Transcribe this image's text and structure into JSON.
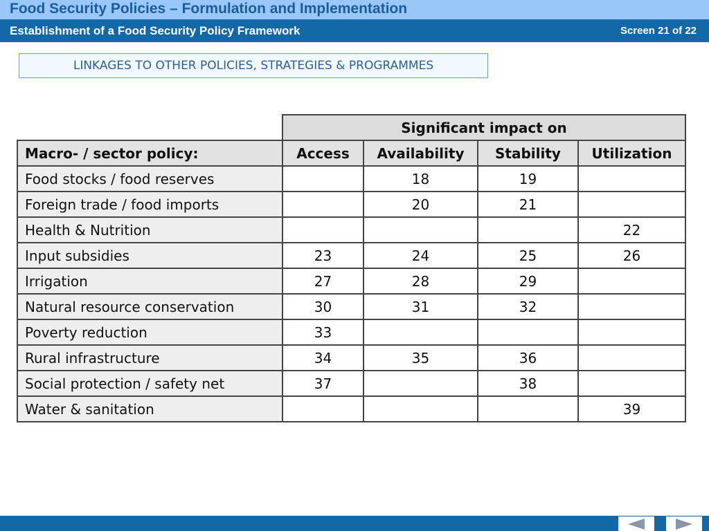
{
  "header": {
    "course_title": "Food Security Policies – Formulation and Implementation",
    "module_title": "Establishment of a Food Security Policy Framework",
    "screen_counter": "Screen 21 of 22"
  },
  "section_title": "LINKAGES TO OTHER POLICIES, STRATEGIES & PROGRAMMES",
  "table": {
    "group_header": "Significant impact on",
    "row_header": "Macro- / sector policy:",
    "columns": [
      "Access",
      "Availability",
      "Stability",
      "Utilization"
    ],
    "rows": [
      {
        "policy": "Food stocks / food reserves",
        "cells": [
          "",
          "18",
          "19",
          ""
        ]
      },
      {
        "policy": "Foreign trade / food imports",
        "cells": [
          "",
          "20",
          "21",
          ""
        ]
      },
      {
        "policy": "Health & Nutrition",
        "cells": [
          "",
          "",
          "",
          "22"
        ]
      },
      {
        "policy": "Input subsidies",
        "cells": [
          "23",
          "24",
          "25",
          "26"
        ]
      },
      {
        "policy": "Irrigation",
        "cells": [
          "27",
          "28",
          "29",
          ""
        ]
      },
      {
        "policy": "Natural resource conservation",
        "cells": [
          "30",
          "31",
          "32",
          ""
        ]
      },
      {
        "policy": "Poverty reduction",
        "cells": [
          "33",
          "",
          "",
          ""
        ]
      },
      {
        "policy": "Rural infrastructure",
        "cells": [
          "34",
          "35",
          "36",
          ""
        ]
      },
      {
        "policy": "Social protection / safety net",
        "cells": [
          "37",
          "",
          "38",
          ""
        ]
      },
      {
        "policy": "Water & sanitation",
        "cells": [
          "",
          "",
          "",
          "39"
        ]
      }
    ]
  },
  "navigation": {
    "previous_icon": "triangle-left-icon",
    "next_icon": "triangle-right-icon",
    "icon_color": "#8a96a8"
  },
  "colors": {
    "header_light": "#99c8f8",
    "header_dark": "#1368a8",
    "title_text": "#1b5d9b"
  }
}
